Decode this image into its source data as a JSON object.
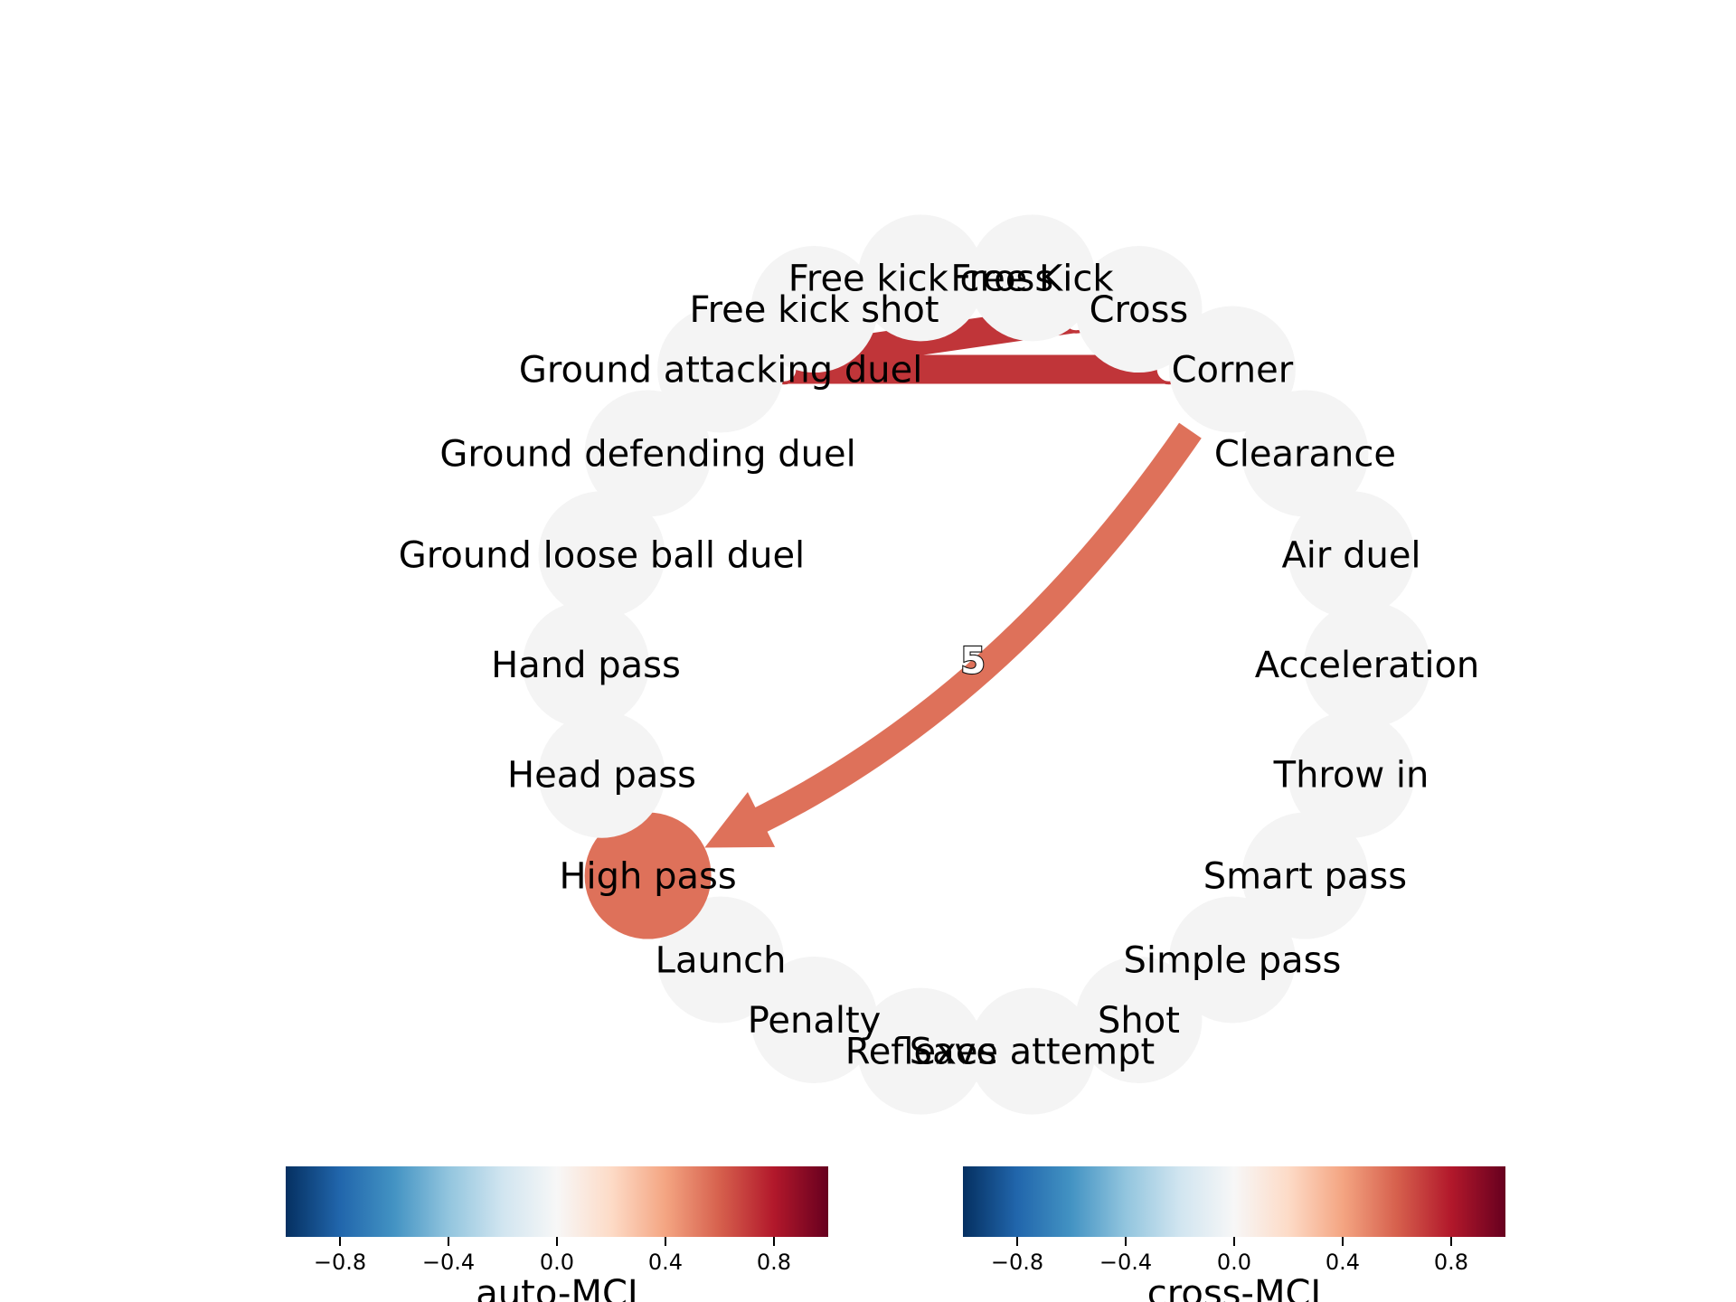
{
  "nodes": [
    {
      "id": "free_kick_cross",
      "label": "Free kick cross"
    },
    {
      "id": "free_kick",
      "label": "Free Kick"
    },
    {
      "id": "cross",
      "label": "Cross"
    },
    {
      "id": "corner",
      "label": "Corner"
    },
    {
      "id": "clearance",
      "label": "Clearance"
    },
    {
      "id": "air_duel",
      "label": "Air duel"
    },
    {
      "id": "acceleration",
      "label": "Acceleration"
    },
    {
      "id": "throw_in",
      "label": "Throw in"
    },
    {
      "id": "smart_pass",
      "label": "Smart pass"
    },
    {
      "id": "simple_pass",
      "label": "Simple pass"
    },
    {
      "id": "shot",
      "label": "Shot"
    },
    {
      "id": "save_attempt",
      "label": "Save attempt"
    },
    {
      "id": "reflexes",
      "label": "Reflexes"
    },
    {
      "id": "penalty",
      "label": "Penalty"
    },
    {
      "id": "launch",
      "label": "Launch"
    },
    {
      "id": "high_pass",
      "label": "High pass",
      "auto_mci": 0.55
    },
    {
      "id": "head_pass",
      "label": "Head pass"
    },
    {
      "id": "hand_pass",
      "label": "Hand pass"
    },
    {
      "id": "ground_loose_ball_duel",
      "label": "Ground loose ball duel"
    },
    {
      "id": "ground_defending_duel",
      "label": "Ground defending duel"
    },
    {
      "id": "ground_attacking_duel",
      "label": "Ground attacking duel"
    },
    {
      "id": "free_kick_shot",
      "label": "Free kick shot"
    }
  ],
  "links": [
    {
      "source": "ground_attacking_duel",
      "target": "cross",
      "type": "contemporaneous",
      "cross_mci": 0.72
    },
    {
      "source": "ground_attacking_duel",
      "target": "corner",
      "type": "contemporaneous",
      "cross_mci": 0.72
    },
    {
      "source": "corner",
      "target": "high_pass",
      "type": "lagged",
      "cross_mci": 0.55,
      "lag_label": "5"
    }
  ],
  "colors": {
    "inactive_node": "#f4f4f4",
    "cmap": [
      "#053061",
      "#2166ac",
      "#4393c3",
      "#92c5de",
      "#d1e5f0",
      "#f7f7f7",
      "#fddbc7",
      "#f4a582",
      "#d6604d",
      "#b2182b",
      "#67001f"
    ]
  },
  "colorbars": [
    {
      "id": "auto",
      "label": "auto-MCI",
      "vmin": -1,
      "vmax": 1,
      "ticks": [
        "−0.8",
        "−0.4",
        "0.0",
        "0.4",
        "0.8"
      ],
      "tick_values": [
        -0.8,
        -0.4,
        0.0,
        0.4,
        0.8
      ]
    },
    {
      "id": "cross",
      "label": "cross-MCI",
      "vmin": -1,
      "vmax": 1,
      "ticks": [
        "−0.8",
        "−0.4",
        "0.0",
        "0.4",
        "0.8"
      ],
      "tick_values": [
        -0.8,
        -0.4,
        0.0,
        0.4,
        0.8
      ]
    }
  ]
}
